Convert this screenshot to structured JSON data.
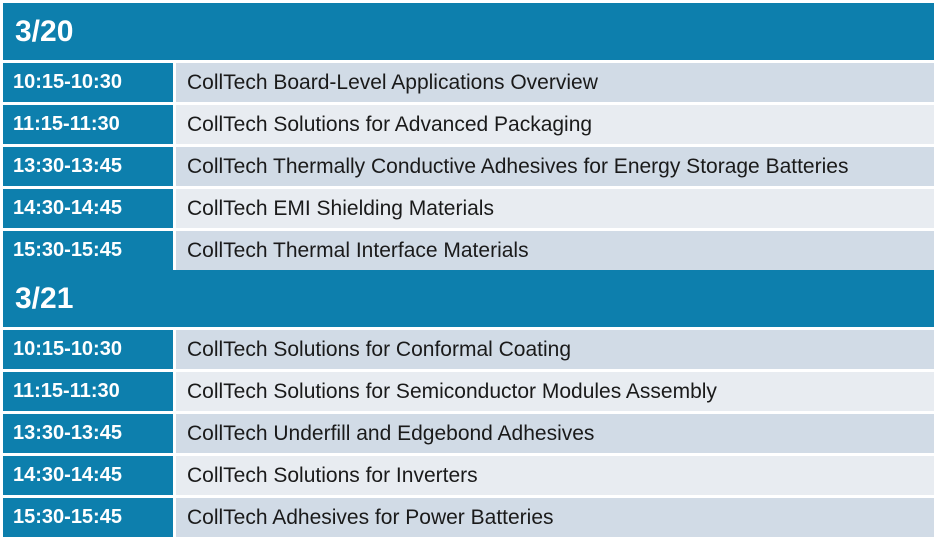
{
  "days": [
    {
      "date": "3/20",
      "sessions": [
        {
          "time": "10:15-10:30",
          "title": "CollTech Board-Level Applications Overview"
        },
        {
          "time": "11:15-11:30",
          "title": "CollTech Solutions for Advanced Packaging"
        },
        {
          "time": "13:30-13:45",
          "title": "CollTech Thermally Conductive Adhesives for Energy Storage Batteries"
        },
        {
          "time": "14:30-14:45",
          "title": "CollTech EMI Shielding Materials"
        },
        {
          "time": "15:30-15:45",
          "title": "CollTech Thermal Interface Materials"
        }
      ]
    },
    {
      "date": "3/21",
      "sessions": [
        {
          "time": "10:15-10:30",
          "title": "CollTech Solutions for Conformal Coating"
        },
        {
          "time": "11:15-11:30",
          "title": "CollTech Solutions for Semiconductor Modules Assembly"
        },
        {
          "time": "13:30-13:45",
          "title": "CollTech Underfill and Edgebond Adhesives"
        },
        {
          "time": "14:30-14:45",
          "title": "CollTech Solutions for Inverters"
        },
        {
          "time": "15:30-15:45",
          "title": "CollTech Adhesives for Power Batteries"
        }
      ]
    }
  ],
  "colors": {
    "header_blue": "#0d7fad",
    "row_dark": "#d1dbe6",
    "row_light": "#e8ecf1"
  }
}
